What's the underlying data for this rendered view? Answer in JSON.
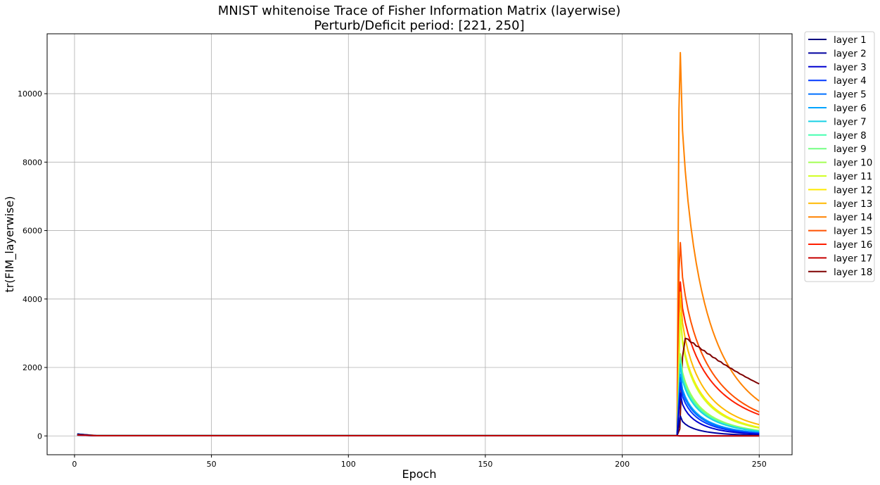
{
  "chart_data": {
    "type": "line",
    "title": "MNIST whitenoise Trace of Fisher Information Matrix (layerwise)",
    "subtitle": "Perturb/Deficit period: [221, 250]",
    "xlabel": "Epoch",
    "ylabel": "tr(FIM_layerwise)",
    "xlim": [
      -10,
      262
    ],
    "ylim": [
      -550,
      11750
    ],
    "xticks": [
      0,
      50,
      100,
      150,
      200,
      250
    ],
    "yticks": [
      0,
      2000,
      4000,
      6000,
      8000,
      10000
    ],
    "grid": true,
    "legend_position": "outside-right",
    "peak_epoch": 221,
    "end_epoch": 250,
    "series": [
      {
        "name": "layer 1",
        "color": "#00007f",
        "peak": 0,
        "end": 0,
        "early": 5
      },
      {
        "name": "layer 2",
        "color": "#00009f",
        "peak": 580,
        "end": 20,
        "early": 5
      },
      {
        "name": "layer 3",
        "color": "#0000d0",
        "peak": 1250,
        "end": 50,
        "early": 6
      },
      {
        "name": "layer 4",
        "color": "#0038ff",
        "peak": 1550,
        "end": 70,
        "early": 6
      },
      {
        "name": "layer 5",
        "color": "#0070ff",
        "peak": 1700,
        "end": 85,
        "early": 7
      },
      {
        "name": "layer 6",
        "color": "#00a4ff",
        "peak": 1800,
        "end": 95,
        "early": 7
      },
      {
        "name": "layer 7",
        "color": "#19d0e5",
        "peak": 2100,
        "end": 130,
        "early": 8
      },
      {
        "name": "layer 8",
        "color": "#47ffb0",
        "peak": 2200,
        "end": 140,
        "early": 8
      },
      {
        "name": "layer 9",
        "color": "#74ff83",
        "peak": 2300,
        "end": 150,
        "early": 8
      },
      {
        "name": "layer 10",
        "color": "#a3ff53",
        "peak": 2400,
        "end": 160,
        "early": 9
      },
      {
        "name": "layer 11",
        "color": "#d1ff26",
        "peak": 3500,
        "end": 230,
        "early": 9
      },
      {
        "name": "layer 12",
        "color": "#ffea00",
        "peak": 3600,
        "end": 250,
        "early": 10
      },
      {
        "name": "layer 13",
        "color": "#ffb900",
        "peak": 4200,
        "end": 330,
        "early": 10
      },
      {
        "name": "layer 14",
        "color": "#ff8200",
        "peak": 11200,
        "end": 1020,
        "early": 12
      },
      {
        "name": "layer 15",
        "color": "#ff5200",
        "peak": 5650,
        "end": 700,
        "early": 10
      },
      {
        "name": "layer 16",
        "color": "#ff1e00",
        "peak": 4500,
        "end": 620,
        "early": 10
      },
      {
        "name": "layer 17",
        "color": "#c60000",
        "peak": 0,
        "end": 0,
        "early": 8
      },
      {
        "name": "layer 18",
        "color": "#7f0000",
        "peak": 2850,
        "end": 1520,
        "early": 10
      }
    ]
  }
}
